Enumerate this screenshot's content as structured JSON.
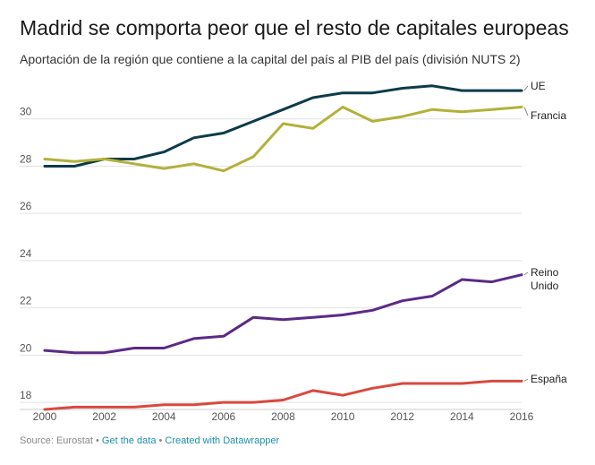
{
  "title": "Madrid se comporta peor que el resto de capitales europeas",
  "subtitle": "Aportación de la región que contiene a la capital del país al PIB del país (división NUTS 2)",
  "footer": {
    "source": "Source: Eurostat",
    "sep1": " • ",
    "link1": "Get the data",
    "sep2": " • ",
    "link2": "Created with Datawrapper"
  },
  "chart_data": {
    "type": "line",
    "title": "Madrid se comporta peor que el resto de capitales europeas",
    "subtitle": "Aportación de la región que contiene a la capital del país al PIB del país (división NUTS 2)",
    "xlabel": "",
    "ylabel": "",
    "x": [
      2000,
      2001,
      2002,
      2003,
      2004,
      2005,
      2006,
      2007,
      2008,
      2009,
      2010,
      2011,
      2012,
      2013,
      2014,
      2015,
      2016
    ],
    "xlim": [
      2000,
      2016
    ],
    "ylim": [
      17.7,
      32
    ],
    "x_ticks": [
      "2000",
      "2002",
      "2004",
      "2006",
      "2008",
      "2010",
      "2012",
      "2014",
      "2016"
    ],
    "y_ticks": [
      "18",
      "20",
      "22",
      "24",
      "26",
      "28",
      "30"
    ],
    "grid": "horizontal",
    "series": [
      {
        "name": "UE",
        "color": "#0d3b4a",
        "values": [
          28.0,
          28.0,
          28.3,
          28.3,
          28.6,
          29.2,
          29.4,
          29.9,
          30.4,
          30.9,
          31.1,
          31.1,
          31.3,
          31.4,
          31.2,
          31.2,
          31.2
        ]
      },
      {
        "name": "Francia",
        "color": "#b3b13a",
        "values": [
          28.3,
          28.2,
          28.3,
          28.1,
          27.9,
          28.1,
          27.8,
          28.4,
          29.8,
          29.6,
          30.5,
          29.9,
          30.1,
          30.4,
          30.3,
          30.4,
          30.5
        ]
      },
      {
        "name": "Reino Unido",
        "color": "#5b2a86",
        "values": [
          20.2,
          20.1,
          20.1,
          20.3,
          20.3,
          20.7,
          20.8,
          21.6,
          21.5,
          21.6,
          21.7,
          21.9,
          22.3,
          22.5,
          23.2,
          23.1,
          23.4
        ]
      },
      {
        "name": "España",
        "color": "#d9493f",
        "values": [
          17.7,
          17.8,
          17.8,
          17.8,
          17.9,
          17.9,
          18.0,
          18.0,
          18.1,
          18.5,
          18.3,
          18.6,
          18.8,
          18.8,
          18.8,
          18.9,
          18.9
        ]
      }
    ],
    "series_labels": [
      {
        "name": "UE",
        "lines": [
          "UE"
        ]
      },
      {
        "name": "Francia",
        "lines": [
          "Francia"
        ]
      },
      {
        "name": "Reino Unido",
        "lines": [
          "Reino",
          "Unido"
        ]
      },
      {
        "name": "España",
        "lines": [
          "España"
        ]
      }
    ]
  }
}
